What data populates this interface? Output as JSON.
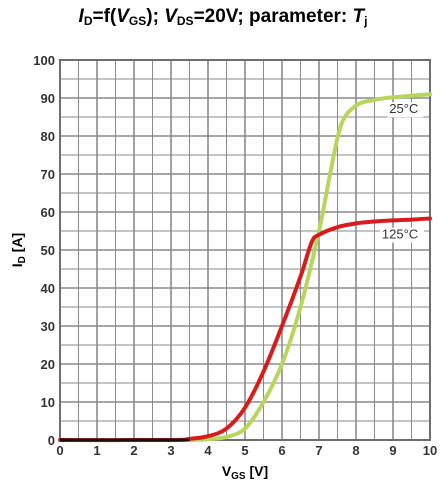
{
  "chart_data": {
    "type": "line",
    "title": {
      "part1": "I",
      "part1_sub": "D",
      "part2": "=f(",
      "part3": "V",
      "part3_sub": "GS",
      "part4": "); ",
      "part5": "V",
      "part5_sub": "DS",
      "part6": "=20V; parameter: ",
      "part7": "T",
      "part7_sub": "j"
    },
    "xlabel": {
      "main": "V",
      "sub": "GS",
      "unit": " [V]"
    },
    "ylabel": {
      "main": "I",
      "sub": "D",
      "unit": " [A]"
    },
    "xlim": [
      0,
      10
    ],
    "ylim": [
      0,
      100
    ],
    "x_ticks": [
      "0",
      "1",
      "2",
      "3",
      "4",
      "5",
      "6",
      "7",
      "8",
      "9",
      "10"
    ],
    "y_ticks": [
      "0",
      "10",
      "20",
      "30",
      "40",
      "50",
      "60",
      "70",
      "80",
      "90",
      "100"
    ],
    "grid": true,
    "series": [
      {
        "name": "25°C",
        "color": "#b6d65c",
        "x": [
          3.5,
          4.0,
          4.5,
          5.0,
          5.5,
          6.0,
          6.5,
          7.0,
          7.3,
          7.6,
          8.0,
          8.5,
          9.0,
          9.5,
          10.0
        ],
        "y": [
          0,
          0.2,
          0.8,
          3,
          10,
          20,
          35,
          55,
          70,
          83,
          88,
          89.5,
          90.2,
          90.6,
          91
        ]
      },
      {
        "name": "125°C",
        "color": "#d81c1c",
        "x": [
          0,
          3.0,
          3.5,
          4.0,
          4.5,
          5.0,
          5.5,
          6.0,
          6.5,
          6.8,
          7.0,
          7.5,
          8.0,
          8.5,
          9.0,
          9.5,
          10.0
        ],
        "y": [
          0,
          0,
          0.3,
          1,
          3,
          8.5,
          18,
          30,
          43,
          52,
          54,
          56,
          57,
          57.5,
          57.8,
          58,
          58.3
        ]
      }
    ],
    "black_baseline": {
      "x": [
        0,
        3.5
      ],
      "y": [
        0,
        0
      ]
    },
    "annotations": [
      {
        "text": "25°C",
        "x": 8.9,
        "y": 86
      },
      {
        "text": "125°C",
        "x": 8.7,
        "y": 53
      }
    ]
  }
}
